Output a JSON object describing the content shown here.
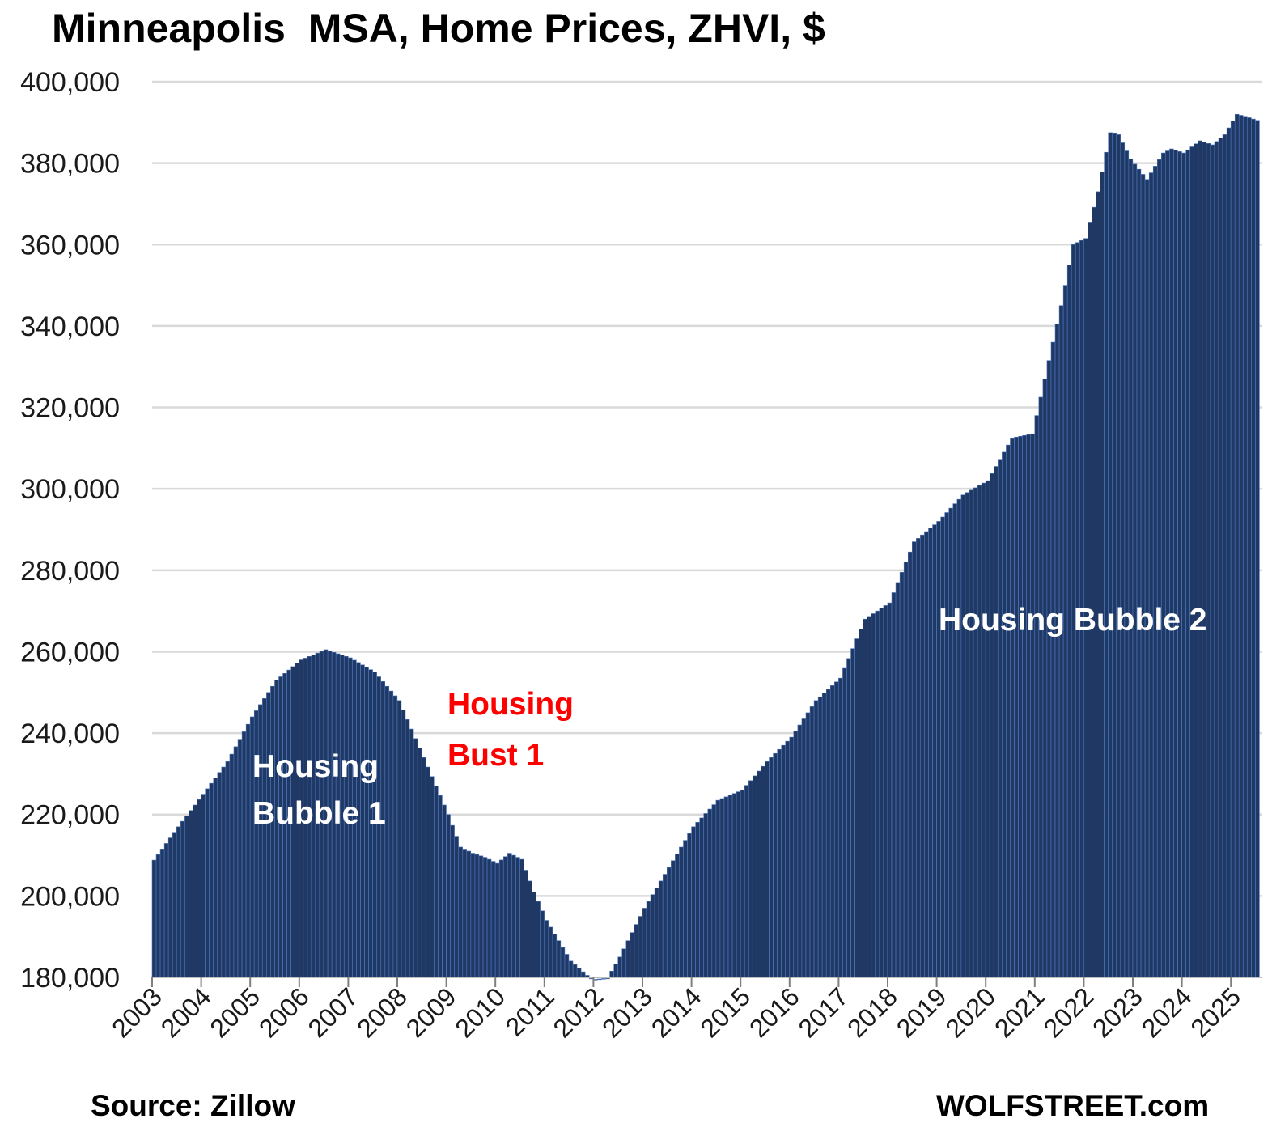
{
  "chart_data": {
    "type": "bar",
    "title": "Minneapolis  MSA, Home Prices, ZHVI, $",
    "source": "Source: Zillow",
    "brand": "WOLFSTREET.com",
    "bar_color": "#1f3864",
    "bar_edge_color": "#4a73b8",
    "grid": true,
    "ylim": [
      180000,
      400000
    ],
    "y_ticks": [
      "180,000",
      "200,000",
      "220,000",
      "240,000",
      "260,000",
      "280,000",
      "300,000",
      "320,000",
      "340,000",
      "360,000",
      "380,000",
      "400,000"
    ],
    "x_ticks": [
      "2003",
      "2004",
      "2005",
      "2006",
      "2007",
      "2008",
      "2009",
      "2010",
      "2011",
      "2012",
      "2013",
      "2014",
      "2015",
      "2016",
      "2017",
      "2018",
      "2019",
      "2020",
      "2021",
      "2022",
      "2023",
      "2024",
      "2025"
    ],
    "start": "2003-01",
    "anchors": [
      [
        "2003-01",
        208800
      ],
      [
        "2003-07",
        217000
      ],
      [
        "2004-01",
        225000
      ],
      [
        "2004-07",
        233000
      ],
      [
        "2005-01",
        244000
      ],
      [
        "2005-07",
        253000
      ],
      [
        "2006-01",
        258000
      ],
      [
        "2006-07",
        260500
      ],
      [
        "2007-01",
        258500
      ],
      [
        "2007-07",
        255000
      ],
      [
        "2008-01",
        248000
      ],
      [
        "2008-07",
        234000
      ],
      [
        "2009-01",
        220000
      ],
      [
        "2009-04",
        212000
      ],
      [
        "2009-07",
        210500
      ],
      [
        "2009-10",
        209500
      ],
      [
        "2010-01",
        208000
      ],
      [
        "2010-04",
        210500
      ],
      [
        "2010-07",
        209000
      ],
      [
        "2010-10",
        201000
      ],
      [
        "2011-01",
        194000
      ],
      [
        "2011-07",
        184000
      ],
      [
        "2011-11",
        180500
      ],
      [
        "2011-12",
        179800
      ],
      [
        "2012-01",
        179500
      ],
      [
        "2012-04",
        179800
      ],
      [
        "2012-07",
        185000
      ],
      [
        "2013-01",
        197000
      ],
      [
        "2013-07",
        207000
      ],
      [
        "2014-01",
        217000
      ],
      [
        "2014-07",
        223500
      ],
      [
        "2015-01",
        226000
      ],
      [
        "2015-07",
        233000
      ],
      [
        "2016-01",
        239000
      ],
      [
        "2016-07",
        248000
      ],
      [
        "2017-01",
        253500
      ],
      [
        "2017-07",
        268000
      ],
      [
        "2018-01",
        272000
      ],
      [
        "2018-07",
        287000
      ],
      [
        "2019-01",
        292000
      ],
      [
        "2019-07",
        298500
      ],
      [
        "2020-01",
        302000
      ],
      [
        "2020-07",
        312500
      ],
      [
        "2020-12",
        313500
      ],
      [
        "2021-01",
        318000
      ],
      [
        "2021-07",
        345000
      ],
      [
        "2021-10",
        360000
      ],
      [
        "2022-01",
        361500
      ],
      [
        "2022-04",
        373000
      ],
      [
        "2022-07",
        387500
      ],
      [
        "2022-09",
        387000
      ],
      [
        "2022-12",
        381000
      ],
      [
        "2023-04",
        376000
      ],
      [
        "2023-08",
        382500
      ],
      [
        "2023-10",
        383500
      ],
      [
        "2024-01",
        382500
      ],
      [
        "2024-05",
        385500
      ],
      [
        "2024-08",
        384500
      ],
      [
        "2024-11",
        387000
      ],
      [
        "2025-02",
        392000
      ],
      [
        "2025-04",
        391500
      ],
      [
        "2025-07",
        390500
      ]
    ],
    "annotations": [
      {
        "lines": [
          "Housing",
          "Bubble 1"
        ],
        "color": "#ffffff"
      },
      {
        "lines": [
          "Housing",
          "Bust 1"
        ],
        "color": "#ff0000"
      },
      {
        "lines": [
          "Housing Bubble 2"
        ],
        "color": "#ffffff"
      }
    ]
  }
}
